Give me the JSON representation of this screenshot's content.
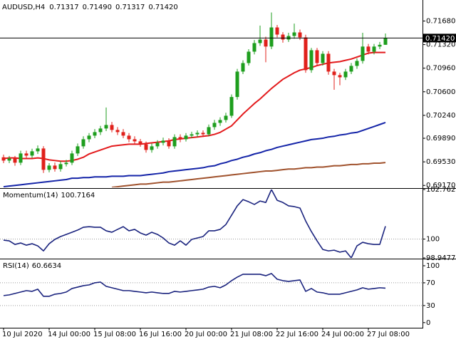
{
  "header": {
    "symbol": "AUDUSD,H4",
    "ohlc": [
      "0.71317",
      "0.71490",
      "0.71317",
      "0.71420"
    ]
  },
  "chart_data": [
    {
      "type": "candlestick",
      "categories": [
        "10 Jul 2020",
        null,
        null,
        null,
        null,
        null,
        null,
        null,
        "14 Jul 00:00",
        null,
        null,
        null,
        null,
        null,
        null,
        null,
        "15 Jul 08:00",
        null,
        null,
        null,
        null,
        null,
        null,
        null,
        "16 Jul 16:00",
        null,
        null,
        null,
        null,
        null,
        null,
        null,
        "20 Jul 00:00",
        null,
        null,
        null,
        null,
        null,
        null,
        null,
        "21 Jul 08:00",
        null,
        null,
        null,
        null,
        null,
        null,
        null,
        "22 Jul 16:00",
        null,
        null,
        null,
        null,
        null,
        null,
        null,
        "24 Jul 00:00",
        null,
        null,
        null,
        null,
        null,
        null,
        null,
        "27 Jul 08:00",
        null,
        null,
        null
      ],
      "open": [
        0.696,
        0.69549,
        0.69582,
        0.69517,
        0.69658,
        0.69625,
        0.69691,
        0.69734,
        0.69408,
        0.69473,
        0.69419,
        0.69495,
        0.69517,
        0.69658,
        0.69767,
        0.69875,
        0.6993,
        0.69984,
        0.70039,
        0.70093,
        0.70017,
        0.69984,
        0.6993,
        0.69875,
        0.69843,
        0.69799,
        0.69712,
        0.69767,
        0.69821,
        0.69854,
        0.69767,
        0.69908,
        0.69875,
        0.6993,
        0.69951,
        0.69973,
        0.69951,
        0.7006,
        0.70125,
        0.70169,
        0.70234,
        0.7052,
        0.70908,
        0.71038,
        0.71212,
        0.71343,
        0.71397,
        0.7129,
        0.71582,
        0.71473,
        0.71397,
        0.71452,
        0.71506,
        0.7143,
        0.7093,
        0.71234,
        0.71038,
        0.7118,
        0.70908,
        0.70854,
        0.70821,
        0.70908,
        0.70995,
        0.71071,
        0.7129,
        0.71212,
        0.7129,
        0.71317
      ],
      "high": [
        0.6964,
        0.6962,
        0.6962,
        0.697,
        0.697,
        0.6973,
        0.6978,
        0.6977,
        0.6951,
        0.6952,
        0.6954,
        0.6956,
        0.697,
        0.6981,
        0.6992,
        0.6997,
        0.7003,
        0.7008,
        0.7036,
        0.7014,
        0.7006,
        0.7003,
        0.6997,
        0.6992,
        0.6988,
        0.6984,
        0.6981,
        0.6986,
        0.699,
        0.6989,
        0.6995,
        0.6995,
        0.6997,
        0.6999,
        0.7001,
        0.7001,
        0.701,
        0.7017,
        0.7021,
        0.7028,
        0.7056,
        0.7095,
        0.7108,
        0.7125,
        0.7139,
        0.7161,
        0.7144,
        0.7181,
        0.7162,
        0.7151,
        0.715,
        0.7164,
        0.7155,
        0.7147,
        0.7127,
        0.7127,
        0.7122,
        0.7122,
        0.7095,
        0.7089,
        0.7095,
        0.7104,
        0.7111,
        0.715,
        0.7133,
        0.7133,
        0.7136,
        0.7149
      ],
      "low": [
        0.6951,
        0.6951,
        0.6947,
        0.6948,
        0.6959,
        0.6959,
        0.6965,
        0.6936,
        0.6937,
        0.6938,
        0.6938,
        0.6946,
        0.6948,
        0.6962,
        0.6973,
        0.6983,
        0.6989,
        0.6994,
        0.7,
        0.6998,
        0.6994,
        0.6989,
        0.6983,
        0.698,
        0.6976,
        0.6967,
        0.6967,
        0.6973,
        0.6978,
        0.6973,
        0.6973,
        0.6983,
        0.6984,
        0.6989,
        0.6991,
        0.6991,
        0.6992,
        0.7002,
        0.7008,
        0.7013,
        0.702,
        0.7048,
        0.7087,
        0.71,
        0.7117,
        0.713,
        0.7105,
        0.7125,
        0.7143,
        0.7135,
        0.7136,
        0.7141,
        0.7139,
        0.7089,
        0.7089,
        0.71,
        0.71,
        0.7086,
        0.7063,
        0.707,
        0.7078,
        0.7087,
        0.7095,
        0.7103,
        0.7117,
        0.7117,
        0.7125,
        0.71317
      ],
      "close": [
        0.69549,
        0.69582,
        0.69517,
        0.69658,
        0.69625,
        0.69691,
        0.69734,
        0.69408,
        0.69473,
        0.69419,
        0.69495,
        0.69517,
        0.69658,
        0.69767,
        0.69875,
        0.6993,
        0.69984,
        0.70039,
        0.70093,
        0.70017,
        0.69984,
        0.6993,
        0.69875,
        0.69843,
        0.69799,
        0.69712,
        0.69767,
        0.69821,
        0.69854,
        0.69767,
        0.69908,
        0.69875,
        0.6993,
        0.69951,
        0.69973,
        0.69951,
        0.7006,
        0.70125,
        0.70169,
        0.70234,
        0.7052,
        0.70908,
        0.71038,
        0.71212,
        0.71343,
        0.71397,
        0.7129,
        0.71582,
        0.71473,
        0.71397,
        0.71452,
        0.71506,
        0.7143,
        0.7093,
        0.71234,
        0.71038,
        0.7118,
        0.70908,
        0.70854,
        0.70821,
        0.70908,
        0.70995,
        0.71071,
        0.7129,
        0.71212,
        0.7129,
        0.71317,
        0.7142
      ],
      "up_color": "#1e9e1e",
      "down_color": "#e0201b",
      "series": [
        {
          "color": "#e31a1c",
          "values": [
            0.6958,
            0.6959,
            0.6959,
            0.6958,
            0.6958,
            0.6958,
            0.6959,
            0.6958,
            0.6956,
            0.6955,
            0.6954,
            0.6954,
            0.6955,
            0.6957,
            0.696,
            0.6965,
            0.6968,
            0.6971,
            0.6974,
            0.6977,
            0.6978,
            0.6979,
            0.698,
            0.698,
            0.698,
            0.6981,
            0.6982,
            0.6983,
            0.6984,
            0.6985,
            0.6987,
            0.6988,
            0.6989,
            0.699,
            0.6991,
            0.6992,
            0.6993,
            0.6995,
            0.6998,
            0.7003,
            0.7008,
            0.7017,
            0.7026,
            0.7034,
            0.7042,
            0.7049,
            0.7057,
            0.7065,
            0.7072,
            0.7079,
            0.7084,
            0.7089,
            0.7093,
            0.7095,
            0.7097,
            0.71,
            0.7102,
            0.7104,
            0.7105,
            0.7106,
            0.7108,
            0.711,
            0.7113,
            0.7116,
            0.7119,
            0.712,
            0.712,
            0.712
          ]
        },
        {
          "color": "#1424a8",
          "values": [
            0.6915,
            0.6916,
            0.6917,
            0.6918,
            0.6919,
            0.692,
            0.6921,
            0.6922,
            0.6923,
            0.6924,
            0.6925,
            0.6926,
            0.6928,
            0.6928,
            0.6929,
            0.6929,
            0.693,
            0.693,
            0.693,
            0.6931,
            0.6931,
            0.6931,
            0.6932,
            0.6932,
            0.6932,
            0.6933,
            0.6934,
            0.6935,
            0.6936,
            0.6938,
            0.6939,
            0.694,
            0.6941,
            0.6942,
            0.6943,
            0.6944,
            0.6946,
            0.6947,
            0.695,
            0.6952,
            0.6955,
            0.6957,
            0.696,
            0.6962,
            0.6965,
            0.6967,
            0.697,
            0.6972,
            0.6975,
            0.6977,
            0.6979,
            0.6981,
            0.6983,
            0.6985,
            0.6987,
            0.6988,
            0.6989,
            0.6991,
            0.6992,
            0.6994,
            0.6995,
            0.6997,
            0.6998,
            0.7001,
            0.7004,
            0.7007,
            0.701,
            0.7013
          ]
        },
        {
          "color": "#a0522d",
          "values": [
            null,
            null,
            null,
            null,
            null,
            null,
            null,
            null,
            null,
            null,
            null,
            null,
            null,
            null,
            null,
            null,
            null,
            null,
            null,
            0.6914,
            0.6915,
            0.6916,
            0.6917,
            0.6918,
            0.6919,
            0.6919,
            0.692,
            0.6921,
            0.6922,
            0.6922,
            0.6923,
            0.6924,
            0.6925,
            0.6926,
            0.6927,
            0.6928,
            0.6929,
            0.693,
            0.6931,
            0.6932,
            0.6933,
            0.6934,
            0.6935,
            0.6936,
            0.6937,
            0.6938,
            0.6939,
            0.6939,
            0.694,
            0.6941,
            0.6942,
            0.6942,
            0.6943,
            0.6944,
            0.6944,
            0.6945,
            0.6945,
            0.6946,
            0.6947,
            0.6947,
            0.6948,
            0.6949,
            0.6949,
            0.695,
            0.695,
            0.6951,
            0.6951,
            0.6952
          ]
        }
      ],
      "current_price": {
        "value": 0.7142,
        "label": "0.71420"
      },
      "ylim": [
        0.6914,
        0.7199
      ],
      "yticks": [
        {
          "value": 0.7168,
          "label": "0.71680"
        },
        {
          "value": 0.7132,
          "label": "0.71320"
        },
        {
          "value": 0.7096,
          "label": "0.70960"
        },
        {
          "value": 0.706,
          "label": "0.70600"
        },
        {
          "value": 0.7024,
          "label": "0.70240"
        },
        {
          "value": 0.6989,
          "label": "0.69890"
        },
        {
          "value": 0.6953,
          "label": "0.69530"
        },
        {
          "value": 0.6917,
          "label": "0.69170"
        }
      ]
    },
    {
      "type": "line",
      "title": "Momentum(14)",
      "color": "#1a237e",
      "values": [
        99.94,
        99.9,
        99.7,
        99.78,
        99.66,
        99.74,
        99.62,
        99.34,
        99.74,
        99.98,
        100.14,
        100.26,
        100.38,
        100.5,
        100.66,
        100.69,
        100.66,
        100.66,
        100.46,
        100.38,
        100.54,
        100.69,
        100.46,
        100.54,
        100.34,
        100.22,
        100.38,
        100.26,
        100.06,
        99.78,
        99.66,
        99.9,
        99.66,
        99.98,
        100.06,
        100.14,
        100.46,
        100.46,
        100.54,
        100.81,
        101.33,
        101.85,
        102.2,
        102.08,
        101.93,
        102.12,
        102.04,
        102.7623,
        102.16,
        102.04,
        101.85,
        101.81,
        101.73,
        101.01,
        100.42,
        99.9,
        99.42,
        99.34,
        99.38,
        99.27,
        99.34,
        98.9477,
        99.62,
        99.82,
        99.74,
        99.7,
        99.7,
        100.7164
      ],
      "ylim": [
        98.9477,
        102.7623
      ],
      "yticks": [
        102.7623,
        100,
        98.9477
      ],
      "levels": [
        100
      ]
    },
    {
      "type": "line",
      "title": "RSI(14)",
      "color": "#1a237e",
      "values": [
        47.5,
        48.8,
        51.3,
        53.8,
        56.3,
        55,
        58.8,
        46.3,
        46.3,
        50,
        51.3,
        53.8,
        60,
        62.5,
        65,
        66.3,
        70,
        71.3,
        63.8,
        61.3,
        58.8,
        56.3,
        56.3,
        55,
        53.8,
        52.5,
        53.8,
        52.5,
        51.3,
        51.3,
        55,
        53.8,
        55,
        56.3,
        57.5,
        58.8,
        62.5,
        63.8,
        61.3,
        66.3,
        73.8,
        80,
        85,
        85,
        85,
        85,
        82.5,
        86.3,
        76.3,
        73.8,
        72.5,
        73.8,
        75,
        55,
        60,
        53.8,
        52.5,
        50,
        50,
        50,
        52.5,
        55,
        57.5,
        61.3,
        58.8,
        60,
        61.3,
        60.6634
      ],
      "ylim": [
        -9,
        110
      ],
      "yticks": [
        100,
        70,
        30,
        0
      ],
      "levels": [
        70,
        30
      ]
    }
  ]
}
